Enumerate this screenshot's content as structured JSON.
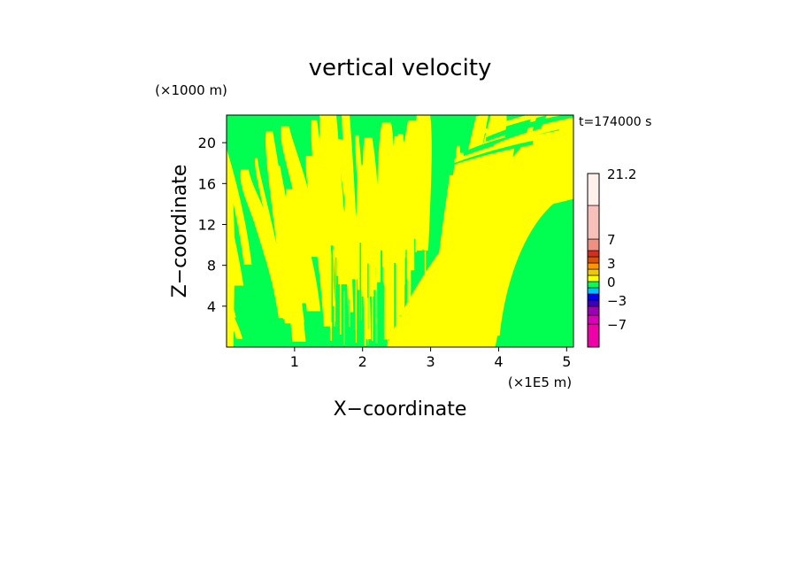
{
  "chart_data": {
    "type": "heatmap",
    "title": "vertical velocity",
    "xlabel": "X−coordinate",
    "ylabel": "Z−coordinate",
    "x_unit": "(×1E5 m)",
    "y_unit": "(×1000 m)",
    "time_label": "t=174000 s",
    "xlim": [
      0,
      5.1
    ],
    "ylim": [
      0,
      22.7
    ],
    "x_ticks": [
      1,
      2,
      3,
      4,
      5
    ],
    "y_ticks": [
      4,
      8,
      12,
      16,
      20
    ],
    "grid": false,
    "colorbar": {
      "levels": [
        -10,
        -7,
        -5,
        -4,
        -3,
        -2,
        -1,
        0,
        1,
        2,
        3,
        4,
        5,
        7,
        14,
        21.2
      ],
      "colors": [
        "#f000a8",
        "#d800b8",
        "#9c00b4",
        "#3c00b4",
        "#0000ff",
        "#00c0ff",
        "#00ff50",
        "#ffff00",
        "#f0c800",
        "#ff9600",
        "#e05000",
        "#d03020",
        "#f09080",
        "#f8c0b8",
        "#fff0ec"
      ],
      "tick_labels": [
        {
          "value": 21.2,
          "label": "21.2"
        },
        {
          "value": 7,
          "label": "7"
        },
        {
          "value": 3,
          "label": "3"
        },
        {
          "value": 0,
          "label": "0"
        },
        {
          "value": -3,
          "label": "−3"
        },
        {
          "value": -7,
          "label": "−7"
        }
      ]
    },
    "field_colors": {
      "negative": "#00ff50",
      "positive": "#ffff00"
    },
    "field_description_value_sign": "green < 0 ≤ yellow",
    "regions": [
      {
        "x0": 0.0,
        "x1": 0.1,
        "z0": 0.0,
        "z1": 22.7,
        "sign": "positive"
      },
      {
        "x0": 4.1,
        "x1": 5.1,
        "z0": 0.0,
        "z1": 14.0,
        "sign": "negative"
      },
      {
        "x0": 2.4,
        "x1": 4.0,
        "z0": 0.0,
        "z1": 5.0,
        "sign": "positive"
      }
    ]
  }
}
